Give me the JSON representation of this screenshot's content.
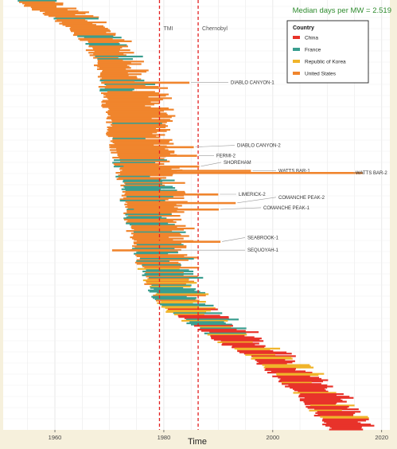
{
  "chart_data": {
    "type": "bar",
    "subtype": "horizontal timeline (construction start to grid connection)",
    "title": "",
    "xlabel": "Time",
    "ylabel": "",
    "xlim": [
      1950.5,
      2021.5
    ],
    "x_ticks": [
      1960,
      1980,
      2000,
      2020
    ],
    "grid": true,
    "annotation_top_right": "Median days per MW = 2.519",
    "reference_lines": [
      {
        "label": "TMI",
        "x": 1979.2
      },
      {
        "label": "Chernobyl",
        "x": 1986.3
      }
    ],
    "legend": {
      "title": "Country",
      "placement": "top-right",
      "entries": [
        {
          "name": "China",
          "color": "#e8332a"
        },
        {
          "name": "France",
          "color": "#3a9e8f"
        },
        {
          "name": "Republic of Korea",
          "color": "#f0b42a"
        },
        {
          "name": "United States",
          "color": "#f0852d"
        }
      ]
    },
    "labeled_reactors": [
      {
        "name": "DIABLO CANYON-1",
        "start": 1968.5,
        "end": 1984.7,
        "country": "United States"
      },
      {
        "name": "DIABLO CANYON-2",
        "start": 1970.0,
        "end": 1985.5,
        "country": "United States"
      },
      {
        "name": "FERMI-2",
        "start": 1972.0,
        "end": 1986.1,
        "country": "United States"
      },
      {
        "name": "SHOREHAM",
        "start": 1972.6,
        "end": 1986.5,
        "country": "United States"
      },
      {
        "name": "WATTS BAR-1",
        "start": 1973.0,
        "end": 1996.0,
        "country": "United States"
      },
      {
        "name": "WATTS BAR-2",
        "start": 1973.0,
        "end": 2016.5,
        "country": "United States"
      },
      {
        "name": "LIMERICK-2",
        "start": 1974.0,
        "end": 1990.0,
        "country": "United States"
      },
      {
        "name": "COMANCHE PEAK-2",
        "start": 1974.5,
        "end": 1993.2,
        "country": "United States"
      },
      {
        "name": "COMANCHE PEAK-1",
        "start": 1974.5,
        "end": 1990.1,
        "country": "United States"
      },
      {
        "name": "SEABROOK-1",
        "start": 1976.5,
        "end": 1990.4,
        "country": "United States"
      },
      {
        "name": "SEQUOYAH-1",
        "start": 1970.5,
        "end": 1980.7,
        "country": "United States"
      }
    ]
  }
}
